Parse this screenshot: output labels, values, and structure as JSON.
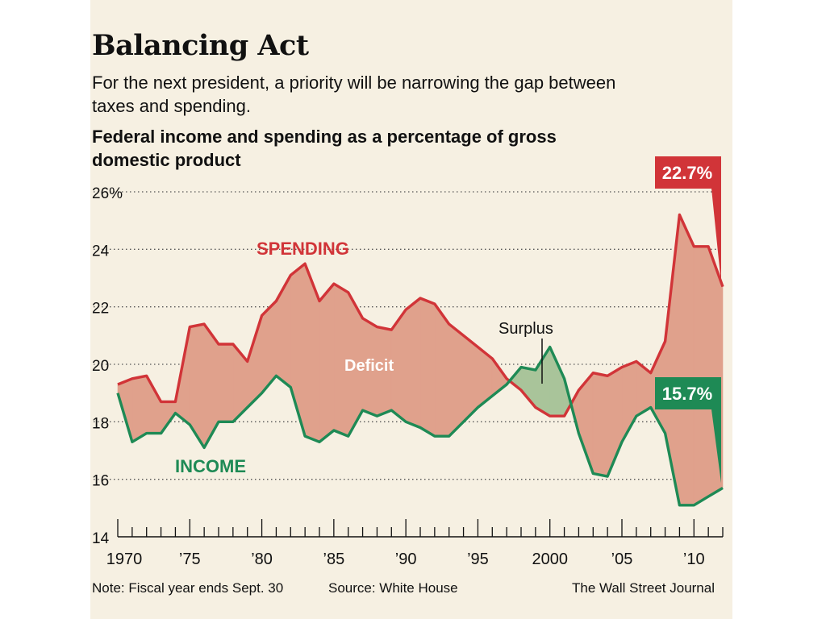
{
  "header": {
    "title": "Balancing Act",
    "subtitle": "For the next president, a priority will be narrowing the gap between taxes and spending."
  },
  "chart_data": {
    "type": "area",
    "title": "Federal income and spending as a percentage of gross domestic product",
    "x": [
      1970,
      1971,
      1972,
      1973,
      1974,
      1975,
      1976,
      1977,
      1978,
      1979,
      1980,
      1981,
      1982,
      1983,
      1984,
      1985,
      1986,
      1987,
      1988,
      1989,
      1990,
      1991,
      1992,
      1993,
      1994,
      1995,
      1996,
      1997,
      1998,
      1999,
      2000,
      2001,
      2002,
      2003,
      2004,
      2005,
      2006,
      2007,
      2008,
      2009,
      2010,
      2011,
      2012
    ],
    "series": [
      {
        "name": "SPENDING",
        "color": "#d13438",
        "values": [
          19.3,
          19.5,
          19.6,
          18.7,
          18.7,
          21.3,
          21.4,
          20.7,
          20.7,
          20.1,
          21.7,
          22.2,
          23.1,
          23.5,
          22.2,
          22.8,
          22.5,
          21.6,
          21.3,
          21.2,
          21.9,
          22.3,
          22.1,
          21.4,
          21.0,
          20.6,
          20.2,
          19.5,
          19.1,
          18.5,
          18.2,
          18.2,
          19.1,
          19.7,
          19.6,
          19.9,
          20.1,
          19.7,
          20.8,
          25.2,
          24.1,
          24.1,
          22.7
        ]
      },
      {
        "name": "INCOME",
        "color": "#1e8a55",
        "values": [
          19.0,
          17.3,
          17.6,
          17.6,
          18.3,
          17.9,
          17.1,
          18.0,
          18.0,
          18.5,
          19.0,
          19.6,
          19.2,
          17.5,
          17.3,
          17.7,
          17.5,
          18.4,
          18.2,
          18.4,
          18.0,
          17.8,
          17.5,
          17.5,
          18.0,
          18.5,
          18.9,
          19.3,
          19.9,
          19.8,
          20.6,
          19.5,
          17.6,
          16.2,
          16.1,
          17.3,
          18.2,
          18.5,
          17.6,
          15.1,
          15.1,
          15.4,
          15.7
        ]
      }
    ],
    "ylim": [
      14,
      26
    ],
    "yticks": [
      14,
      16,
      18,
      20,
      22,
      24,
      26
    ],
    "ytick_labels": [
      "14",
      "16",
      "18",
      "20",
      "22",
      "24",
      "26%"
    ],
    "xlim": [
      1970,
      2012
    ],
    "xticks": [
      1970,
      1975,
      1980,
      1985,
      1990,
      1995,
      2000,
      2005,
      2010
    ],
    "xtick_labels": [
      "1970",
      "’75",
      "’80",
      "’85",
      "’90",
      "’95",
      "2000",
      "’05",
      "’10"
    ],
    "grid": true,
    "annotations": {
      "deficit": "Deficit",
      "surplus": "Surplus",
      "spending_end": "22.7%",
      "income_end": "15.7%"
    },
    "colors": {
      "deficit_fill": "#e0a18c",
      "surplus_fill": "#a9c49a",
      "background": "#f6f0e2"
    }
  },
  "footer": {
    "note": "Note: Fiscal year ends Sept. 30",
    "source": "Source: White House",
    "credit": "The Wall Street Journal"
  }
}
